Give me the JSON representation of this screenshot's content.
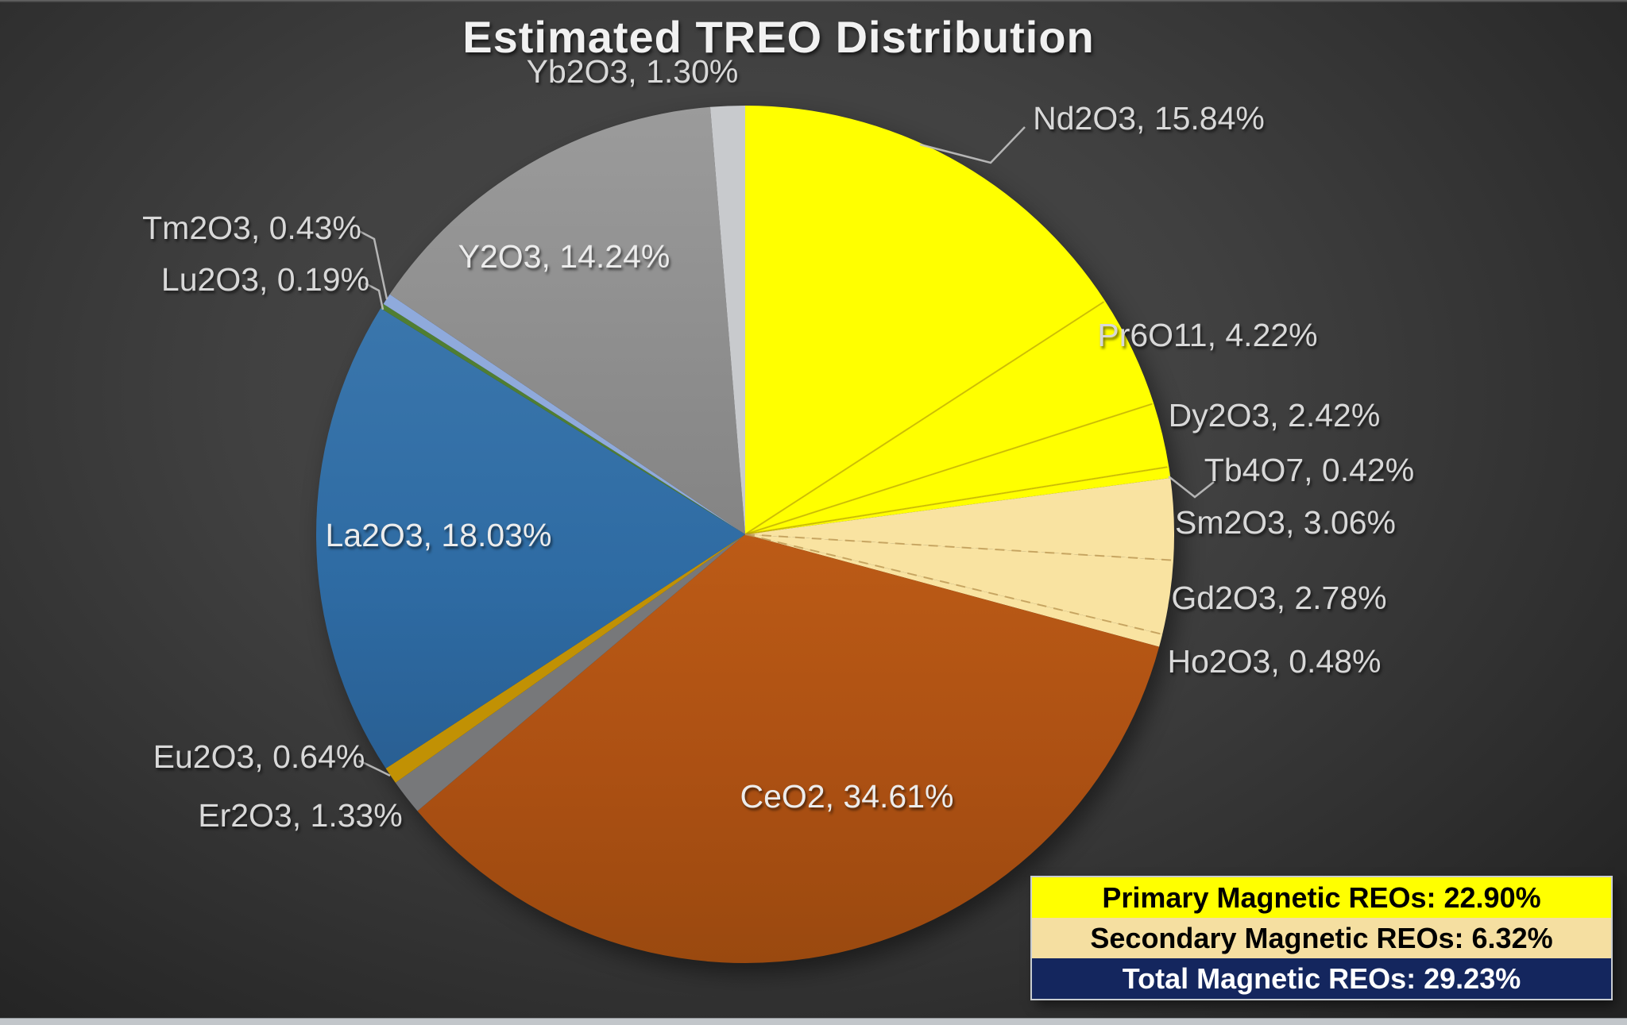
{
  "title": "Estimated TREO Distribution",
  "chart_data": {
    "type": "pie",
    "title": "Estimated TREO Distribution",
    "unit": "%",
    "start_angle_deg": 0,
    "direction": "clockwise",
    "legend_position": "bottom-right",
    "slices": [
      {
        "label": "Nd2O3",
        "value": 15.84,
        "color": "#FFFF00",
        "group": "primary-magnetic"
      },
      {
        "label": "Pr6O11",
        "value": 4.22,
        "color": "#FFFF00",
        "group": "primary-magnetic"
      },
      {
        "label": "Dy2O3",
        "value": 2.42,
        "color": "#FFFF00",
        "group": "primary-magnetic"
      },
      {
        "label": "Tb4O7",
        "value": 0.42,
        "color": "#FFFF00",
        "group": "primary-magnetic"
      },
      {
        "label": "Sm2O3",
        "value": 3.06,
        "color": "#F9E3A1",
        "group": "secondary-magnetic"
      },
      {
        "label": "Gd2O3",
        "value": 2.78,
        "color": "#F9E3A1",
        "group": "secondary-magnetic"
      },
      {
        "label": "Ho2O3",
        "value": 0.48,
        "color": "#F9E3A1",
        "group": "secondary-magnetic"
      },
      {
        "label": "CeO2",
        "value": 34.61,
        "color": "#B2551A",
        "group": "other"
      },
      {
        "label": "Er2O3",
        "value": 1.33,
        "color": "#77787A",
        "group": "other"
      },
      {
        "label": "Eu2O3",
        "value": 0.64,
        "color": "#C19104",
        "group": "other"
      },
      {
        "label": "La2O3",
        "value": 18.03,
        "color": "#2E6BA3",
        "group": "other"
      },
      {
        "label": "Lu2O3",
        "value": 0.19,
        "color": "#507E32",
        "group": "other"
      },
      {
        "label": "Tm2O3",
        "value": 0.43,
        "color": "#8FAADC",
        "group": "other"
      },
      {
        "label": "Y2O3",
        "value": 14.24,
        "color": "#8E8E8E",
        "group": "other"
      },
      {
        "label": "Yb2O3",
        "value": 1.3,
        "color": "#C8CACD",
        "group": "other"
      }
    ]
  },
  "legend": {
    "rows": [
      {
        "label": "Primary Magnetic REOs: 22.90%",
        "bg": "#FFFF00",
        "text_color": "#000000"
      },
      {
        "label": "Secondary Magnetic REOs: 6.32%",
        "bg": "#F5DFA1",
        "text_color": "#000000"
      },
      {
        "label": "Total Magnetic REOs: 29.23%",
        "bg": "#14265E",
        "text_color": "#FFFFFF"
      }
    ]
  },
  "colors": {
    "background_center": "#4a4a4a",
    "background_corner": "#232323",
    "label_text": "#D8D8D8",
    "title_text": "#F1F1F1"
  }
}
